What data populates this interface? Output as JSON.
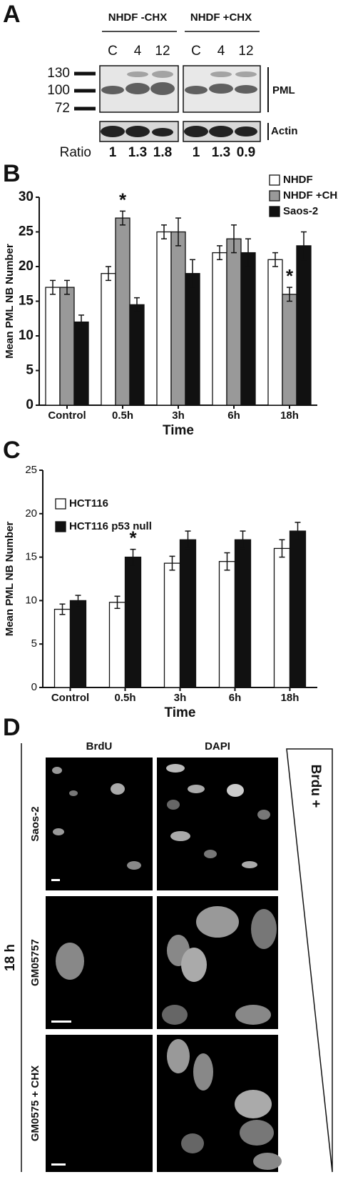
{
  "panel_a": {
    "label": "A",
    "groups": [
      {
        "name": "NHDF -CHX",
        "lanes": [
          "C",
          "4",
          "12"
        ]
      },
      {
        "name": "NHDF +CHX",
        "lanes": [
          "C",
          "4",
          "12"
        ]
      }
    ],
    "markers": [
      "130",
      "100",
      "72"
    ],
    "bands": [
      "PML",
      "Actin"
    ],
    "ratio_label": "Ratio",
    "ratios": [
      [
        "1",
        "1.3",
        "1.8"
      ],
      [
        "1",
        "1.3",
        "0.9"
      ]
    ]
  },
  "chart_data": [
    {
      "type": "bar",
      "panel_label": "B",
      "x_label": "Time",
      "y_label": "Mean PML NB Number",
      "categories": [
        "Control",
        "0.5h",
        "3h",
        "6h",
        "18h"
      ],
      "series": [
        {
          "name": "NHDF",
          "color": "#ffffff",
          "values": [
            17,
            19,
            25,
            22,
            21
          ],
          "errors": [
            1,
            1,
            1,
            1,
            1
          ]
        },
        {
          "name": "NHDF +CHX",
          "color": "#999999",
          "values": [
            17,
            27,
            25,
            24,
            16
          ],
          "errors": [
            1,
            1,
            2,
            2,
            1
          ]
        },
        {
          "name": "Saos-2",
          "color": "#111111",
          "values": [
            12,
            14.5,
            19,
            22,
            23
          ],
          "errors": [
            1,
            1,
            2,
            2,
            2
          ]
        }
      ],
      "annotations": [
        {
          "text": "*",
          "category": "0.5h",
          "series": "NHDF +CHX"
        },
        {
          "text": "*",
          "category": "18h",
          "series": "NHDF +CHX"
        }
      ],
      "ylim": [
        0,
        30
      ],
      "yticks": [
        0,
        5,
        10,
        15,
        20,
        25,
        30
      ],
      "legend": "upper right"
    },
    {
      "type": "bar",
      "panel_label": "C",
      "x_label": "Time",
      "y_label": "Mean PML NB Number",
      "categories": [
        "Control",
        "0.5h",
        "3h",
        "6h",
        "18h"
      ],
      "series": [
        {
          "name": "HCT116",
          "color": "#ffffff",
          "values": [
            9,
            9.8,
            14.3,
            14.5,
            16
          ],
          "errors": [
            0.6,
            0.7,
            0.8,
            1,
            1
          ]
        },
        {
          "name": "HCT116 p53 null",
          "color": "#111111",
          "values": [
            10,
            15,
            17,
            17,
            18
          ],
          "errors": [
            0.6,
            0.9,
            1,
            1,
            1
          ]
        }
      ],
      "annotations": [
        {
          "text": "*",
          "category": "0.5h",
          "series": "HCT116 p53 null"
        }
      ],
      "ylim": [
        0,
        25
      ],
      "yticks": [
        0,
        5,
        10,
        15,
        20,
        25
      ],
      "legend": "upper left"
    }
  ],
  "panel_d": {
    "label": "D",
    "columns": [
      "BrdU",
      "DAPI"
    ],
    "rows": [
      "Saos-2",
      "GM05757",
      "GM0575 + CHX"
    ],
    "time": "18 h",
    "gradient_label": "Brdu +"
  }
}
